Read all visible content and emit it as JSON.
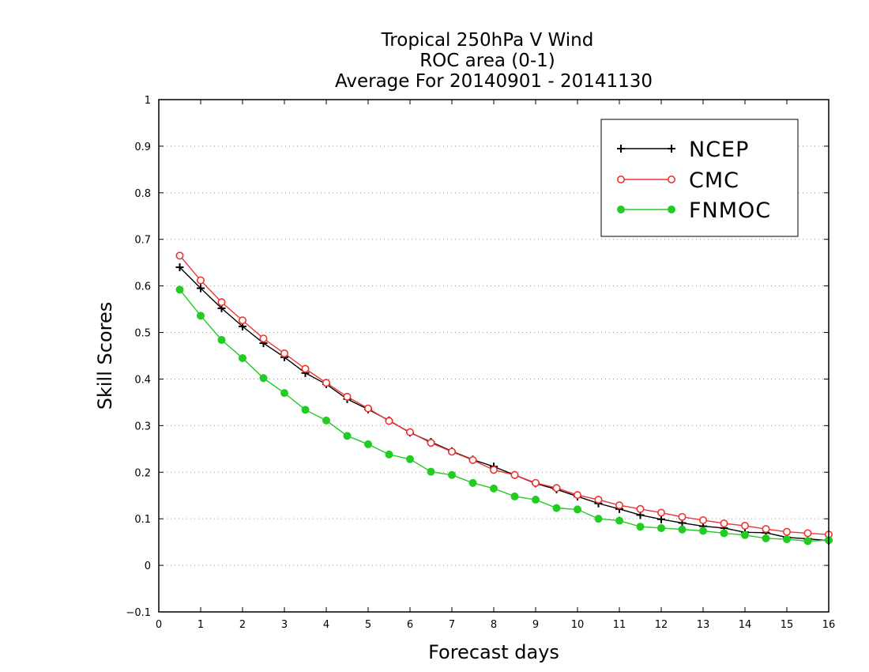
{
  "chart_data": {
    "type": "line",
    "title_lines": [
      "Tropical 250hPa V Wind",
      "ROC area (0-1)",
      "Average For 20140901 - 20141130"
    ],
    "xlabel": "Forecast days",
    "ylabel": "Skill Scores",
    "xlim": [
      0,
      16
    ],
    "ylim": [
      -0.1,
      1
    ],
    "xticks": [
      "0",
      "1",
      "2",
      "3",
      "4",
      "5",
      "6",
      "7",
      "8",
      "9",
      "10",
      "11",
      "12",
      "13",
      "14",
      "15",
      "16"
    ],
    "yticks": [
      "−0.1",
      "0",
      "0.1",
      "0.2",
      "0.3",
      "0.4",
      "0.5",
      "0.6",
      "0.7",
      "0.8",
      "0.9",
      "1"
    ],
    "grid": "horizontal dotted",
    "legend_position": "top-right",
    "x": [
      0.5,
      1,
      1.5,
      2,
      2.5,
      3,
      3.5,
      4,
      4.5,
      5,
      5.5,
      6,
      6.5,
      7,
      7.5,
      8,
      8.5,
      9,
      9.5,
      10,
      10.5,
      11,
      11.5,
      12,
      12.5,
      13,
      13.5,
      14,
      14.5,
      15,
      15.5,
      16
    ],
    "series": [
      {
        "name": "NCEP",
        "color": "#000000",
        "marker": "plus",
        "values": [
          0.64,
          0.595,
          0.552,
          0.513,
          0.477,
          0.447,
          0.413,
          0.389,
          0.357,
          0.335,
          0.311,
          0.285,
          0.265,
          0.245,
          0.227,
          0.212,
          0.194,
          0.176,
          0.163,
          0.148,
          0.133,
          0.121,
          0.108,
          0.099,
          0.091,
          0.084,
          0.08,
          0.071,
          0.07,
          0.06,
          0.057,
          0.053
        ]
      },
      {
        "name": "CMC",
        "color": "#ee3333",
        "marker": "open-circle",
        "values": [
          0.665,
          0.612,
          0.565,
          0.526,
          0.487,
          0.455,
          0.422,
          0.392,
          0.362,
          0.337,
          0.31,
          0.286,
          0.263,
          0.244,
          0.226,
          0.205,
          0.194,
          0.177,
          0.166,
          0.151,
          0.141,
          0.129,
          0.121,
          0.113,
          0.104,
          0.097,
          0.09,
          0.085,
          0.078,
          0.072,
          0.069,
          0.066
        ]
      },
      {
        "name": "FNMOC",
        "color": "#22cc22",
        "marker": "filled-circle",
        "values": [
          0.592,
          0.536,
          0.484,
          0.445,
          0.402,
          0.37,
          0.334,
          0.311,
          0.278,
          0.26,
          0.238,
          0.228,
          0.201,
          0.194,
          0.177,
          0.165,
          0.148,
          0.141,
          0.123,
          0.12,
          0.1,
          0.096,
          0.083,
          0.08,
          0.077,
          0.074,
          0.069,
          0.065,
          0.058,
          0.056,
          0.052,
          0.054
        ]
      }
    ]
  }
}
